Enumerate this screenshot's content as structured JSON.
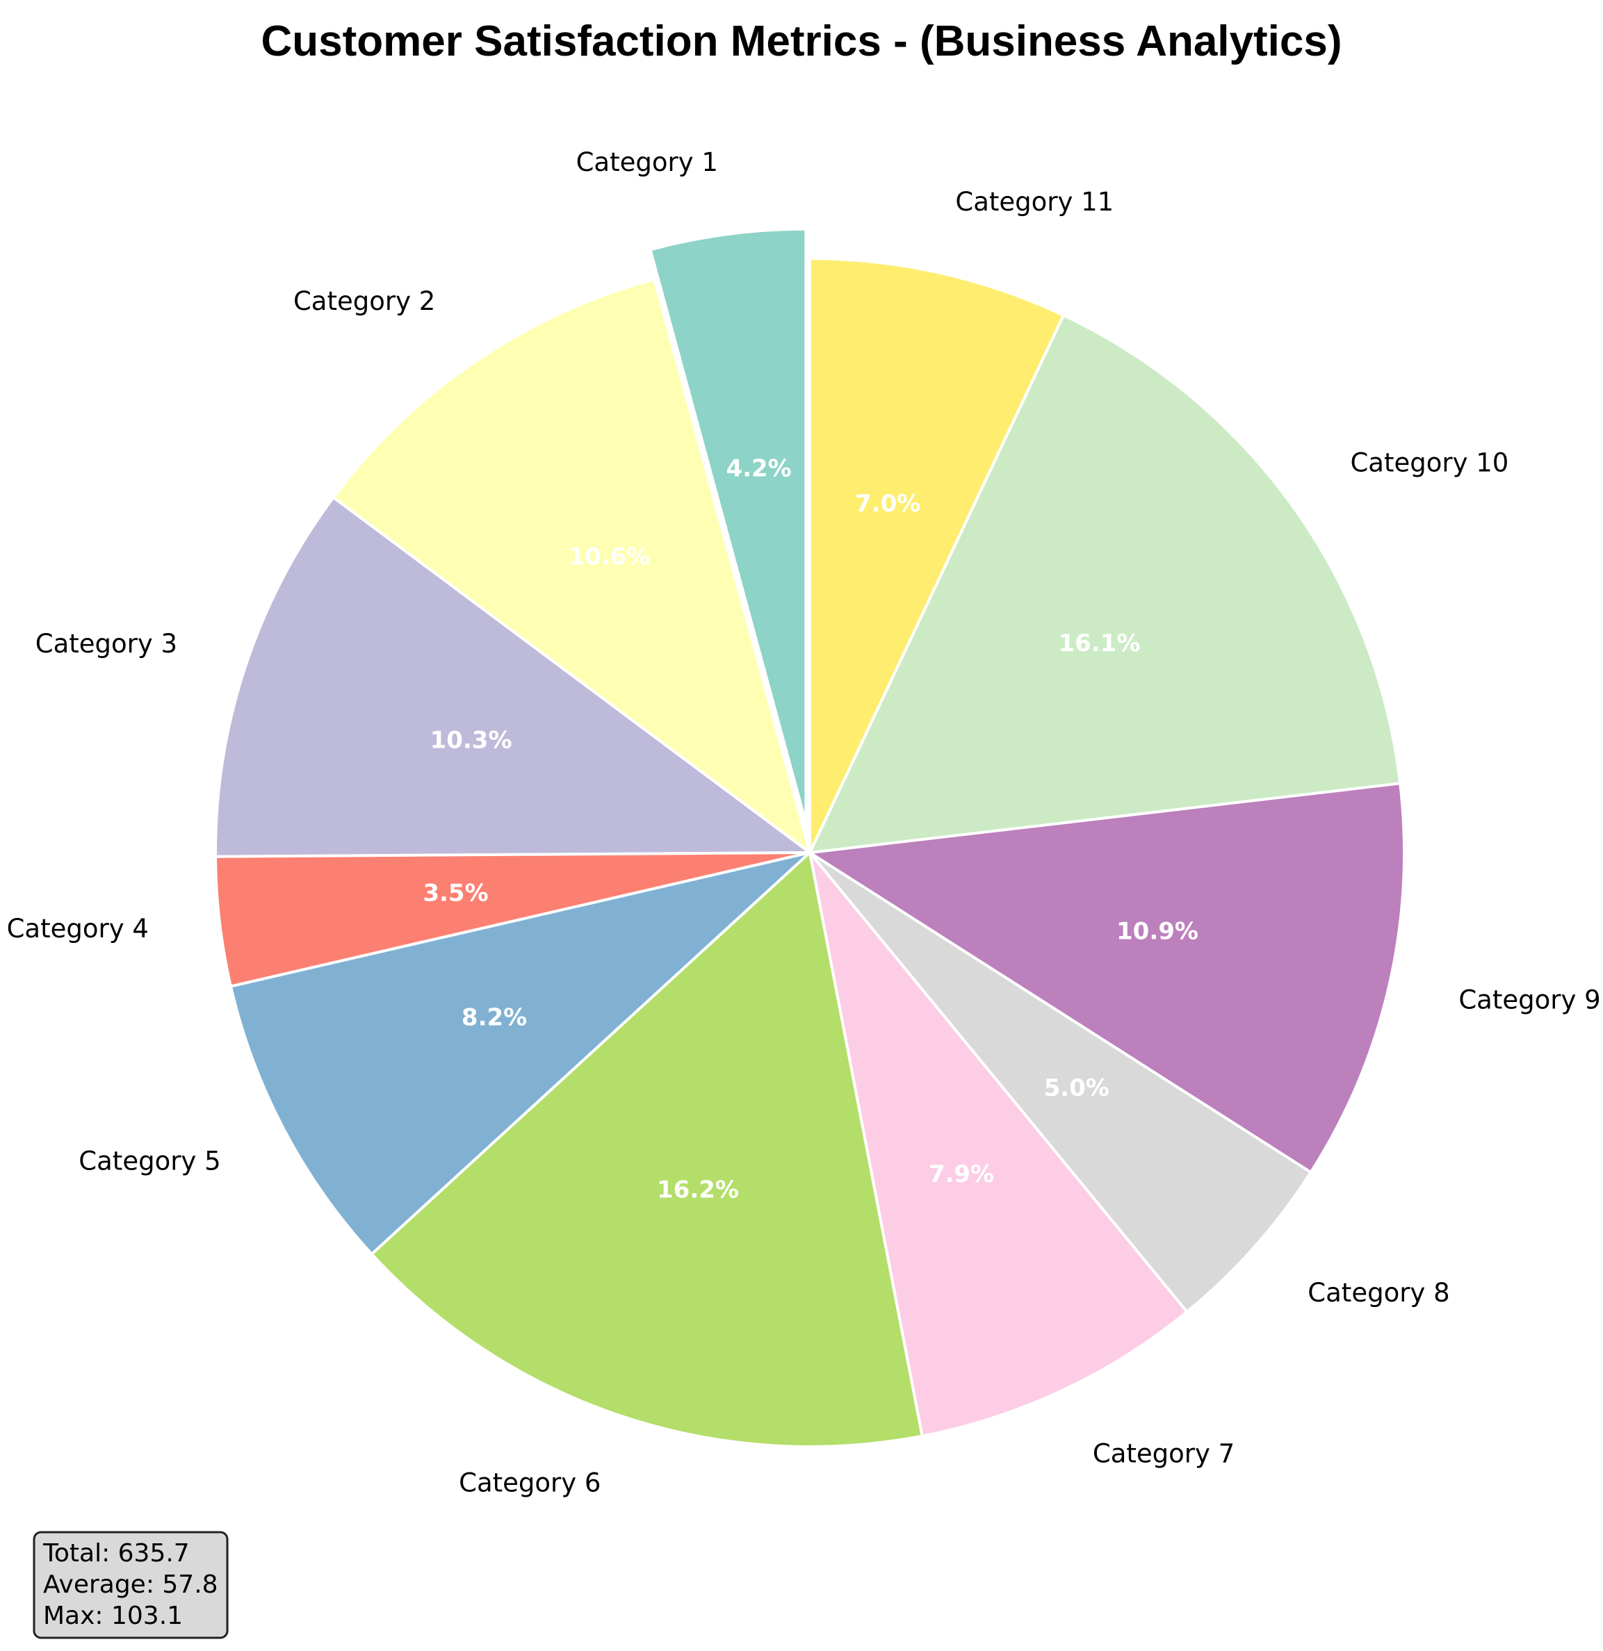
{
  "chart_data": {
    "type": "pie",
    "title": "Customer Satisfaction Metrics - (Business Analytics)",
    "start_angle_deg": 90,
    "direction": "counterclockwise",
    "exploded_category": "Category 1",
    "categories": [
      "Category 1",
      "Category 2",
      "Category 3",
      "Category 4",
      "Category 5",
      "Category 6",
      "Category 7",
      "Category 8",
      "Category 9",
      "Category 10",
      "Category 11"
    ],
    "values": [
      26.8,
      67.3,
      65.5,
      22.3,
      52.1,
      103.1,
      50.3,
      31.9,
      69.3,
      102.5,
      44.6
    ],
    "percent_labels": [
      "4.2%",
      "10.6%",
      "10.3%",
      "3.5%",
      "8.2%",
      "16.2%",
      "7.9%",
      "5.0%",
      "10.9%",
      "16.1%",
      "7.0%"
    ],
    "colors": [
      "#8dd3c7",
      "#ffffb3",
      "#bebada",
      "#fb8072",
      "#80b1d3",
      "#b3de69",
      "#fccde5",
      "#d9d9d9",
      "#bc80bd",
      "#ccebc5",
      "#ffed6f"
    ],
    "stats": {
      "total_label": "Total: 635.7",
      "average_label": "Average: 57.8",
      "max_label": "Max: 103.1"
    }
  }
}
